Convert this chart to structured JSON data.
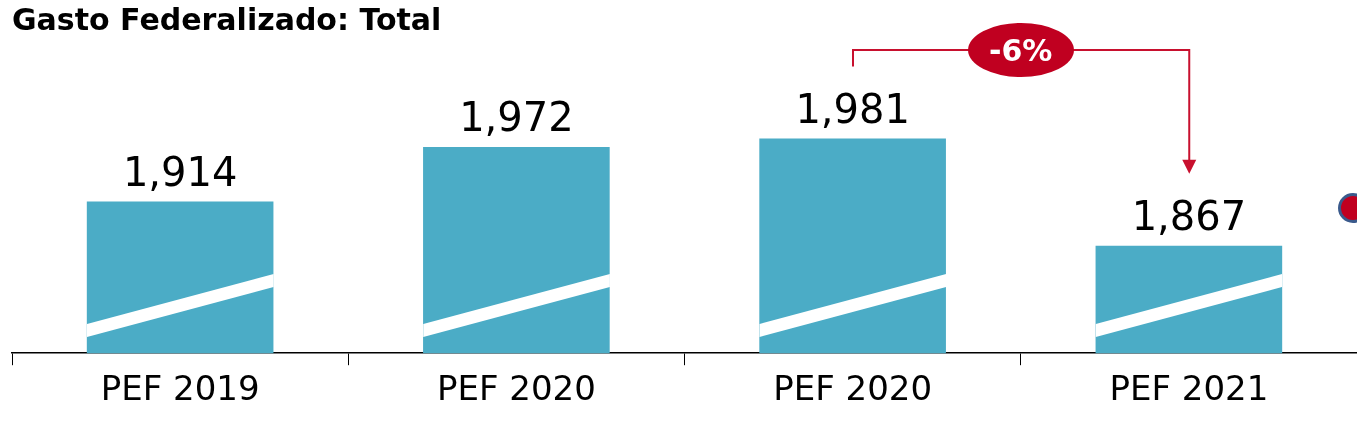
{
  "chart_data": {
    "type": "bar",
    "title": "Gasto Federalizado: Total",
    "categories": [
      "PEF 2019",
      "PEF 2020",
      "PEF 2020",
      "PEF 2021"
    ],
    "values": [
      1914,
      1972,
      1981,
      1867
    ],
    "color": "#4bacc6",
    "value_labels": [
      "1,914",
      "1,972",
      "1,981",
      "1,867"
    ],
    "tick_labels": "x",
    "grid": false,
    "legend": false,
    "annotations": [
      "-6%"
    ]
  }
}
